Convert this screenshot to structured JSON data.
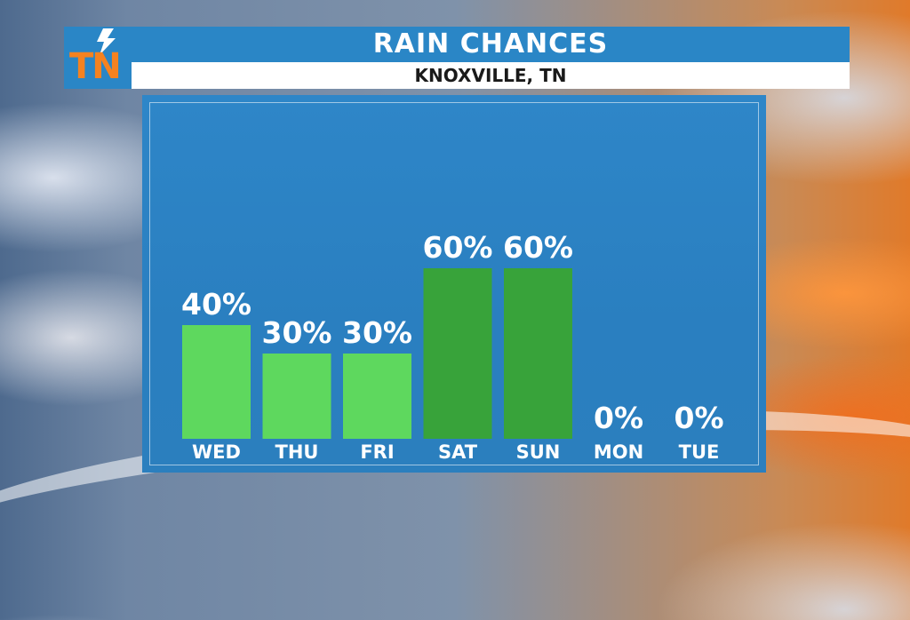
{
  "logo": {
    "text": "TN",
    "icon": "lightning-bolt-icon",
    "color": "#f58220"
  },
  "header": {
    "title": "RAIN CHANCES",
    "subtitle": "KNOXVILLE, TN"
  },
  "chart_data": {
    "type": "bar",
    "categories": [
      "WED",
      "THU",
      "FRI",
      "SAT",
      "SUN",
      "MON",
      "TUE"
    ],
    "values": [
      40,
      30,
      30,
      60,
      60,
      0,
      0
    ],
    "value_labels": [
      "40%",
      "30%",
      "30%",
      "60%",
      "60%",
      "0%",
      "0%"
    ],
    "unit": "%",
    "ylim": [
      0,
      100
    ],
    "grid": false,
    "colors": {
      "light_bar": "#5ed85e",
      "dark_bar": "#38a33a",
      "background": "#2a86c6",
      "text": "#ffffff"
    }
  }
}
